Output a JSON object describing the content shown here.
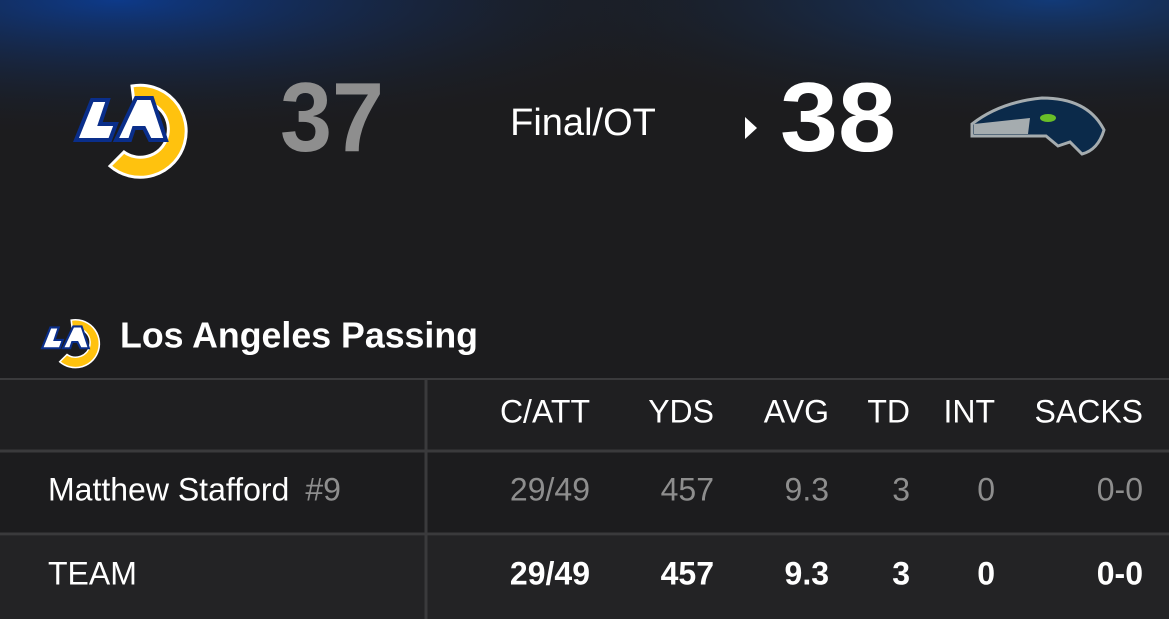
{
  "scoreboard": {
    "away_score": 37,
    "status": "Final/OT",
    "home_score": 38
  },
  "section": {
    "title": "Los Angeles Passing"
  },
  "table": {
    "columns": [
      "C/ATT",
      "YDS",
      "AVG",
      "TD",
      "INT",
      "SACKS"
    ],
    "rows": [
      {
        "name": "Matthew Stafford",
        "number": "#9",
        "cells": [
          "29/49",
          457,
          9.3,
          3,
          0,
          "0-0"
        ]
      },
      {
        "name": "TEAM",
        "cells": [
          "29/49",
          457,
          9.3,
          3,
          0,
          "0-0"
        ]
      }
    ]
  }
}
